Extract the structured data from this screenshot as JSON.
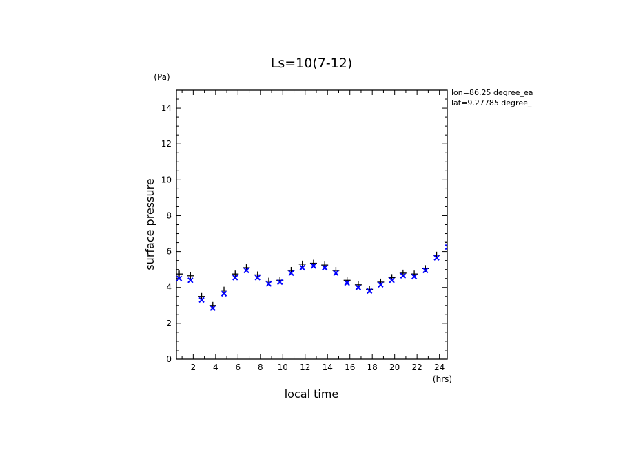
{
  "chart_data": {
    "type": "scatter",
    "title": "Ls=10(7-12)",
    "xlabel": "local time",
    "ylabel": "surface pressure",
    "x_unit": "(hrs)",
    "y_unit": "(Pa)",
    "xlim": [
      0.5,
      24.7
    ],
    "ylim": [
      0,
      15
    ],
    "xticks": [
      2,
      4,
      6,
      8,
      10,
      12,
      14,
      16,
      18,
      20,
      22,
      24
    ],
    "yticks": [
      0,
      2,
      4,
      6,
      8,
      10,
      12,
      14
    ],
    "annotations": [
      "lon=86.25 degree_ea",
      "lat=9.27785 degree_"
    ],
    "x": [
      0.75,
      1.75,
      2.75,
      3.75,
      4.75,
      5.75,
      6.75,
      7.75,
      8.75,
      9.75,
      10.75,
      11.75,
      12.75,
      13.75,
      14.75,
      15.75,
      16.75,
      17.75,
      18.75,
      19.75,
      20.75,
      21.75,
      22.75,
      23.75,
      24.75
    ],
    "series": [
      {
        "marker": "plus",
        "color": "#000000",
        "values": [
          4.75,
          4.65,
          3.5,
          3.0,
          3.85,
          4.75,
          5.1,
          4.7,
          4.35,
          4.4,
          4.95,
          5.3,
          5.35,
          5.25,
          4.95,
          4.4,
          4.15,
          3.9,
          4.3,
          4.55,
          4.8,
          4.75,
          5.05,
          5.8,
          6.55
        ]
      },
      {
        "marker": "x",
        "color": "#0000ff",
        "values": [
          4.5,
          4.4,
          3.3,
          2.85,
          3.65,
          4.55,
          4.95,
          4.55,
          4.2,
          4.3,
          4.8,
          5.1,
          5.2,
          5.1,
          4.8,
          4.25,
          4.0,
          3.8,
          4.15,
          4.4,
          4.65,
          4.6,
          4.95,
          5.65,
          6.25
        ]
      }
    ]
  }
}
